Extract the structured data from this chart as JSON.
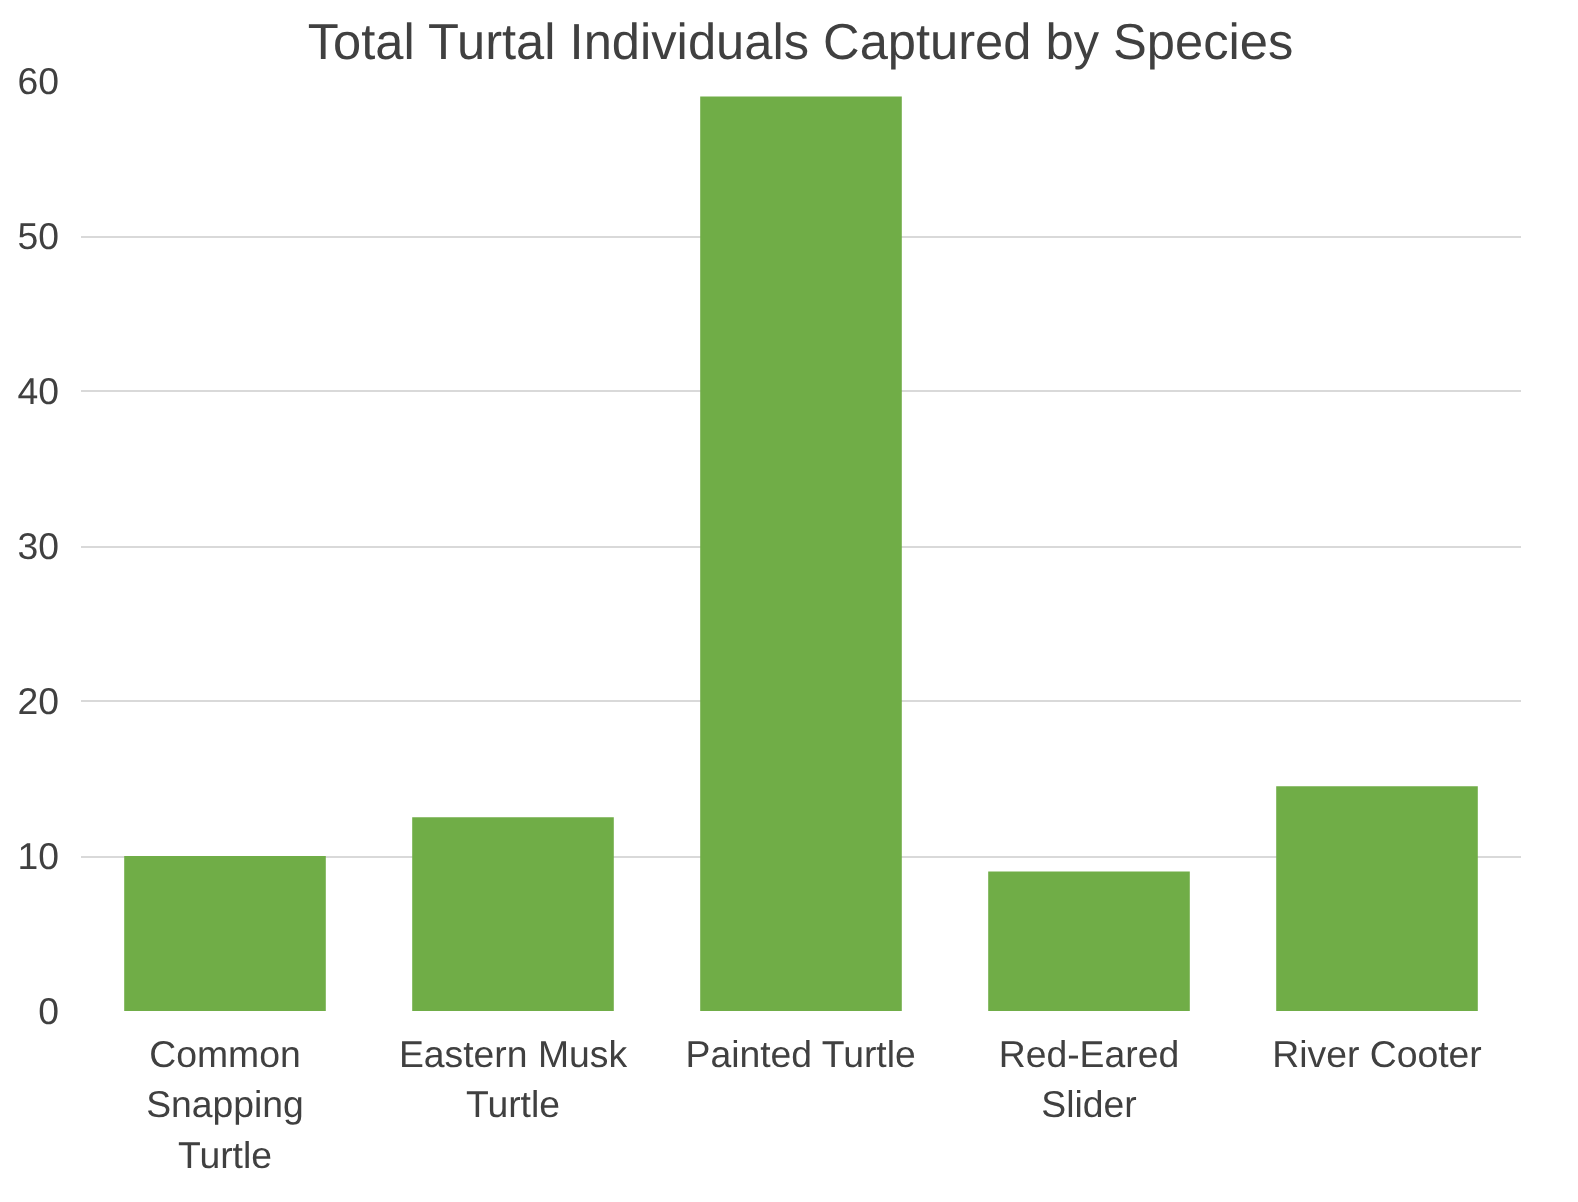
{
  "chart_data": {
    "type": "bar",
    "title": "Total Turtal Individuals Captured by Species",
    "categories": [
      "Common Snapping Turtle",
      "Eastern Musk Turtle",
      "Painted Turtle",
      "Red-Eared Slider",
      "River Cooter"
    ],
    "values": [
      10,
      12.5,
      59,
      9,
      14.5
    ],
    "color": "#70ad47",
    "ylim": [
      0,
      60
    ],
    "yticks": [
      0,
      10,
      20,
      30,
      40,
      50,
      60
    ],
    "grid": "y"
  }
}
